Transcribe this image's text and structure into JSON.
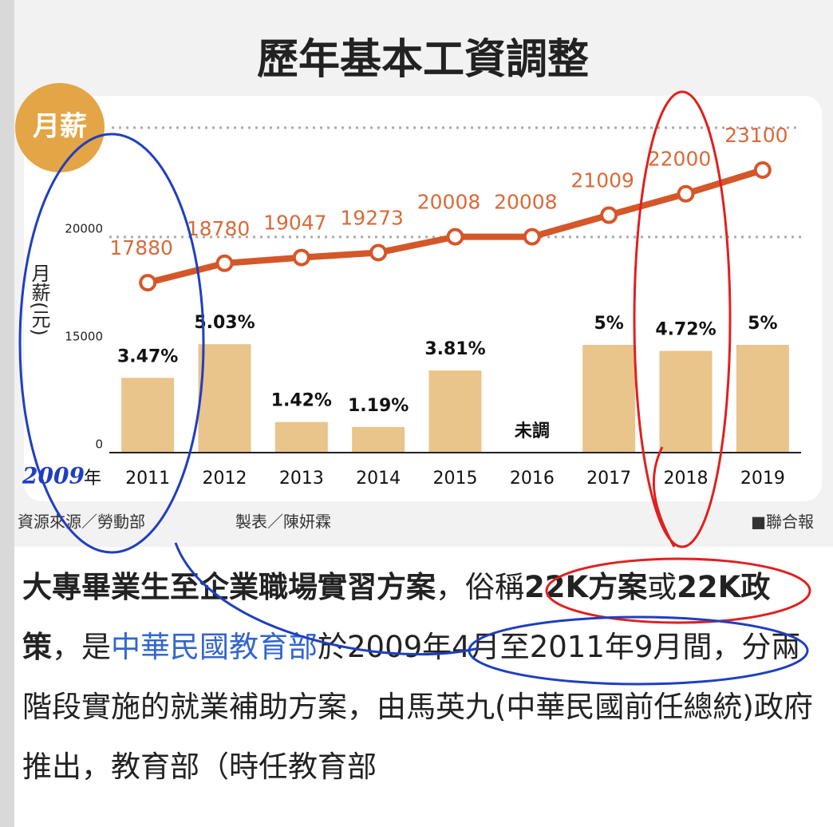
{
  "chart_data": {
    "type": "combo",
    "title": "歷年基本工資調整",
    "badge": "月薪",
    "y_axis_label": "月薪(元)",
    "x_axis_label": "年",
    "categories": [
      "2011",
      "2012",
      "2013",
      "2014",
      "2015",
      "2016",
      "2017",
      "2018",
      "2019"
    ],
    "ylim": [
      0,
      25800
    ],
    "yticks": [
      0,
      15000,
      20000
    ],
    "y2lim": [
      0,
      5
    ],
    "grid": true,
    "series": [
      {
        "type": "bar",
        "axis": "y2",
        "color": "#e9c48b",
        "values": [
          3.47,
          5.03,
          1.42,
          1.19,
          3.81,
          null,
          5,
          4.72,
          5
        ],
        "value_labels": [
          "3.47%",
          "5.03%",
          "1.42%",
          "1.19%",
          "3.81%",
          "未調",
          "5%",
          "4.72%",
          "5%"
        ]
      },
      {
        "type": "line",
        "color": "#d4572a",
        "values": [
          17880,
          18780,
          19047,
          19273,
          20008,
          20008,
          21009,
          22000,
          23100
        ]
      }
    ],
    "source": "資源來源／勞動部",
    "credit": "製表／陳妍霖",
    "publisher": "■聯合報"
  },
  "annotations": {
    "handwritten": "2009"
  },
  "article": {
    "segments": [
      {
        "text": "大專畢業生至企業職場實習方案",
        "style": "bold"
      },
      {
        "text": "，俗稱",
        "style": "normal"
      },
      {
        "text": "22K方案",
        "style": "bold"
      },
      {
        "text": "或",
        "style": "normal"
      },
      {
        "text": "22K政策",
        "style": "bold"
      },
      {
        "text": "，是",
        "style": "normal"
      },
      {
        "text": "中華民國教育部",
        "style": "link"
      },
      {
        "text": "於2009年4月至2011年9月間，分兩階段實施的就業補助方案，由馬英九(中華民國前任總統)政府推出，教育部（時任教育部",
        "style": "normal"
      }
    ]
  }
}
